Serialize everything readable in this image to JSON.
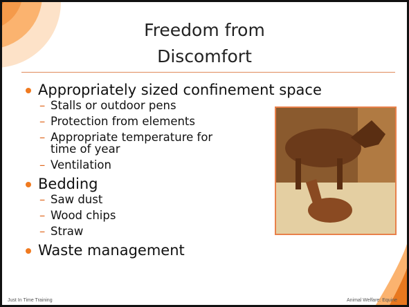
{
  "slide": {
    "title_lines": [
      "Freedom from",
      "Discomfort"
    ],
    "bullets": [
      {
        "text": "Appropriately sized confinement space",
        "subitems": [
          "Stalls or outdoor pens",
          "Protection from elements",
          "Appropriate temperature for time of year",
          "Ventilation"
        ]
      },
      {
        "text": "Bedding",
        "subitems": [
          "Saw dust",
          "Wood chips",
          "Straw"
        ]
      },
      {
        "text": "Waste management",
        "subitems": []
      }
    ],
    "footer_left": "Just In Time Training",
    "footer_right": "Animal Welfare: Equine"
  }
}
